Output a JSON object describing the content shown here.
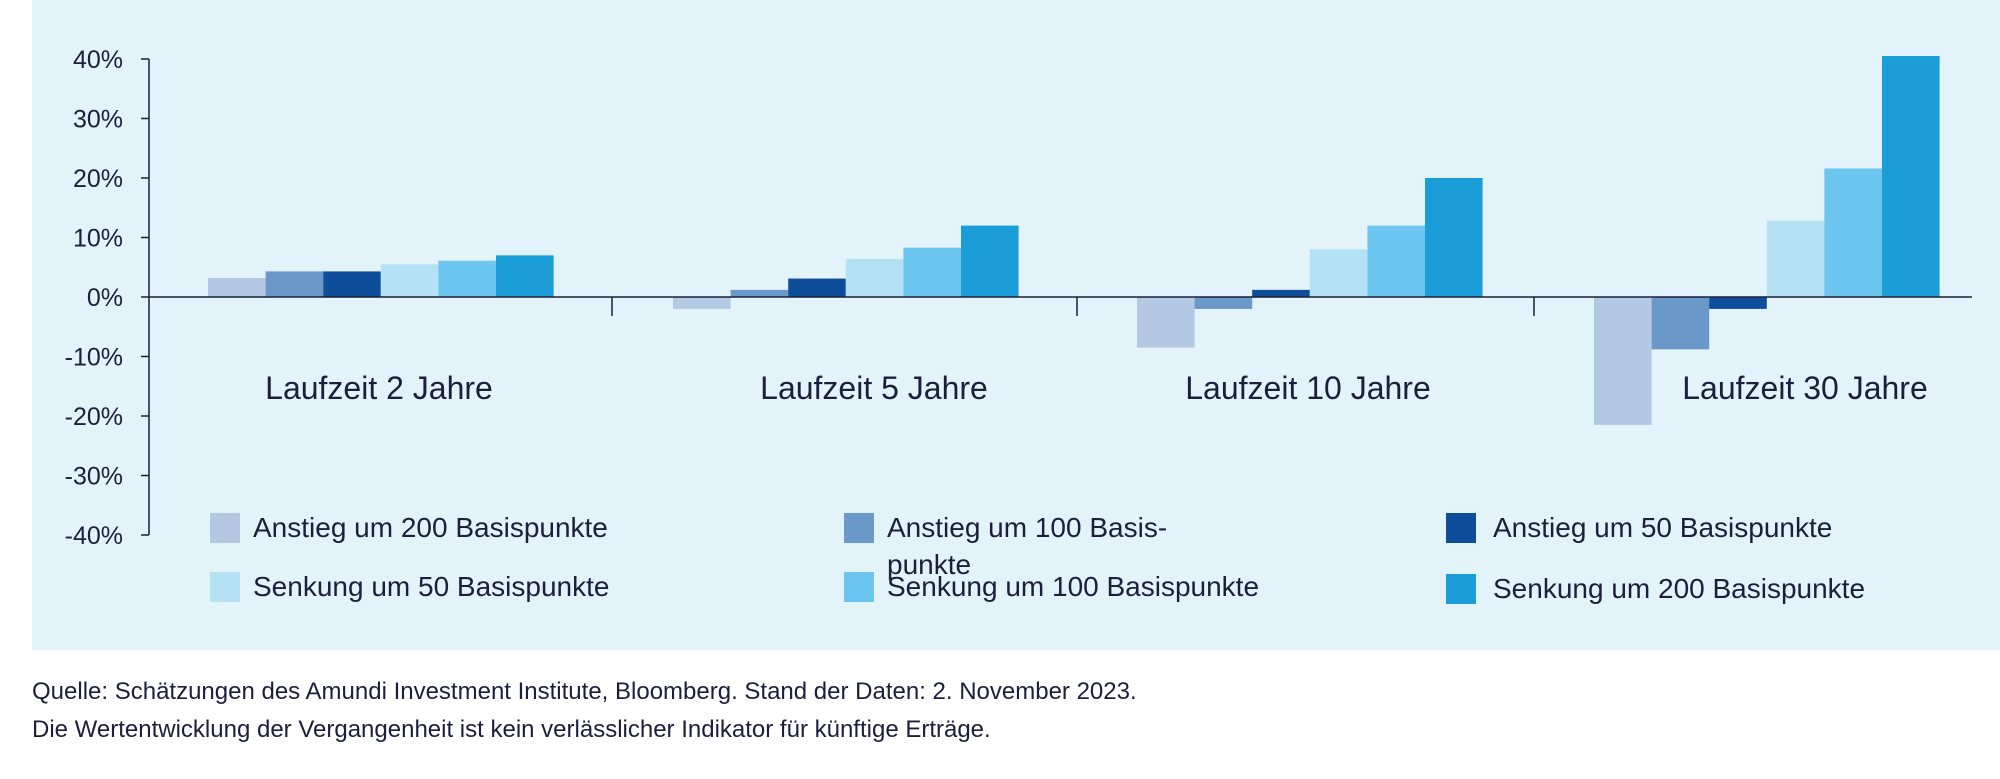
{
  "chart_data": {
    "type": "bar",
    "title": "",
    "xlabel": "",
    "ylabel": "",
    "ylim": [
      -40,
      40
    ],
    "yticks": [
      40,
      30,
      20,
      10,
      0,
      -10,
      -20,
      -30,
      -40
    ],
    "ytick_labels": [
      "40%",
      "30%",
      "20%",
      "10%",
      "0%",
      "-10%",
      "-20%",
      "-30%",
      "-40%"
    ],
    "categories": [
      "Laufzeit 2 Jahre",
      "Laufzeit 5 Jahre",
      "Laufzeit 10 Jahre",
      "Laufzeit 30 Jahre"
    ],
    "grid": false,
    "legend_position": "bottom",
    "series": [
      {
        "name": "Anstieg um 200 Basispunkte",
        "color": "#b3c9e3",
        "values": [
          3.2,
          -2.0,
          -8.5,
          -21.5
        ]
      },
      {
        "name": "Anstieg um 100 Basis-punkte",
        "color": "#6a98c9",
        "values": [
          4.3,
          1.2,
          -2.0,
          -8.8
        ]
      },
      {
        "name": "Anstieg um 50 Basispunkte",
        "color": "#0d4d9a",
        "values": [
          4.3,
          3.1,
          1.2,
          -2.0
        ]
      },
      {
        "name": "Senkung um 50 Basispunkte",
        "color": "#b5e1f5",
        "values": [
          5.5,
          6.4,
          8.0,
          12.8
        ]
      },
      {
        "name": "Senkung um 100 Basispunkte",
        "color": "#6cc6ef",
        "values": [
          6.1,
          8.3,
          12.0,
          21.6
        ]
      },
      {
        "name": "Senkung um 200 Basispunkte",
        "color": "#1b9ed8",
        "values": [
          7.0,
          12.0,
          20.0,
          40.5
        ]
      }
    ]
  },
  "footer": {
    "source": "Quelle: Schätzungen des Amundi Investment Institute, Bloomberg. Stand der Daten: 2. November 2023.",
    "disclaimer": "Die Wertentwicklung der Vergangenheit ist kein verlässlicher Indikator für künftige Erträge."
  }
}
